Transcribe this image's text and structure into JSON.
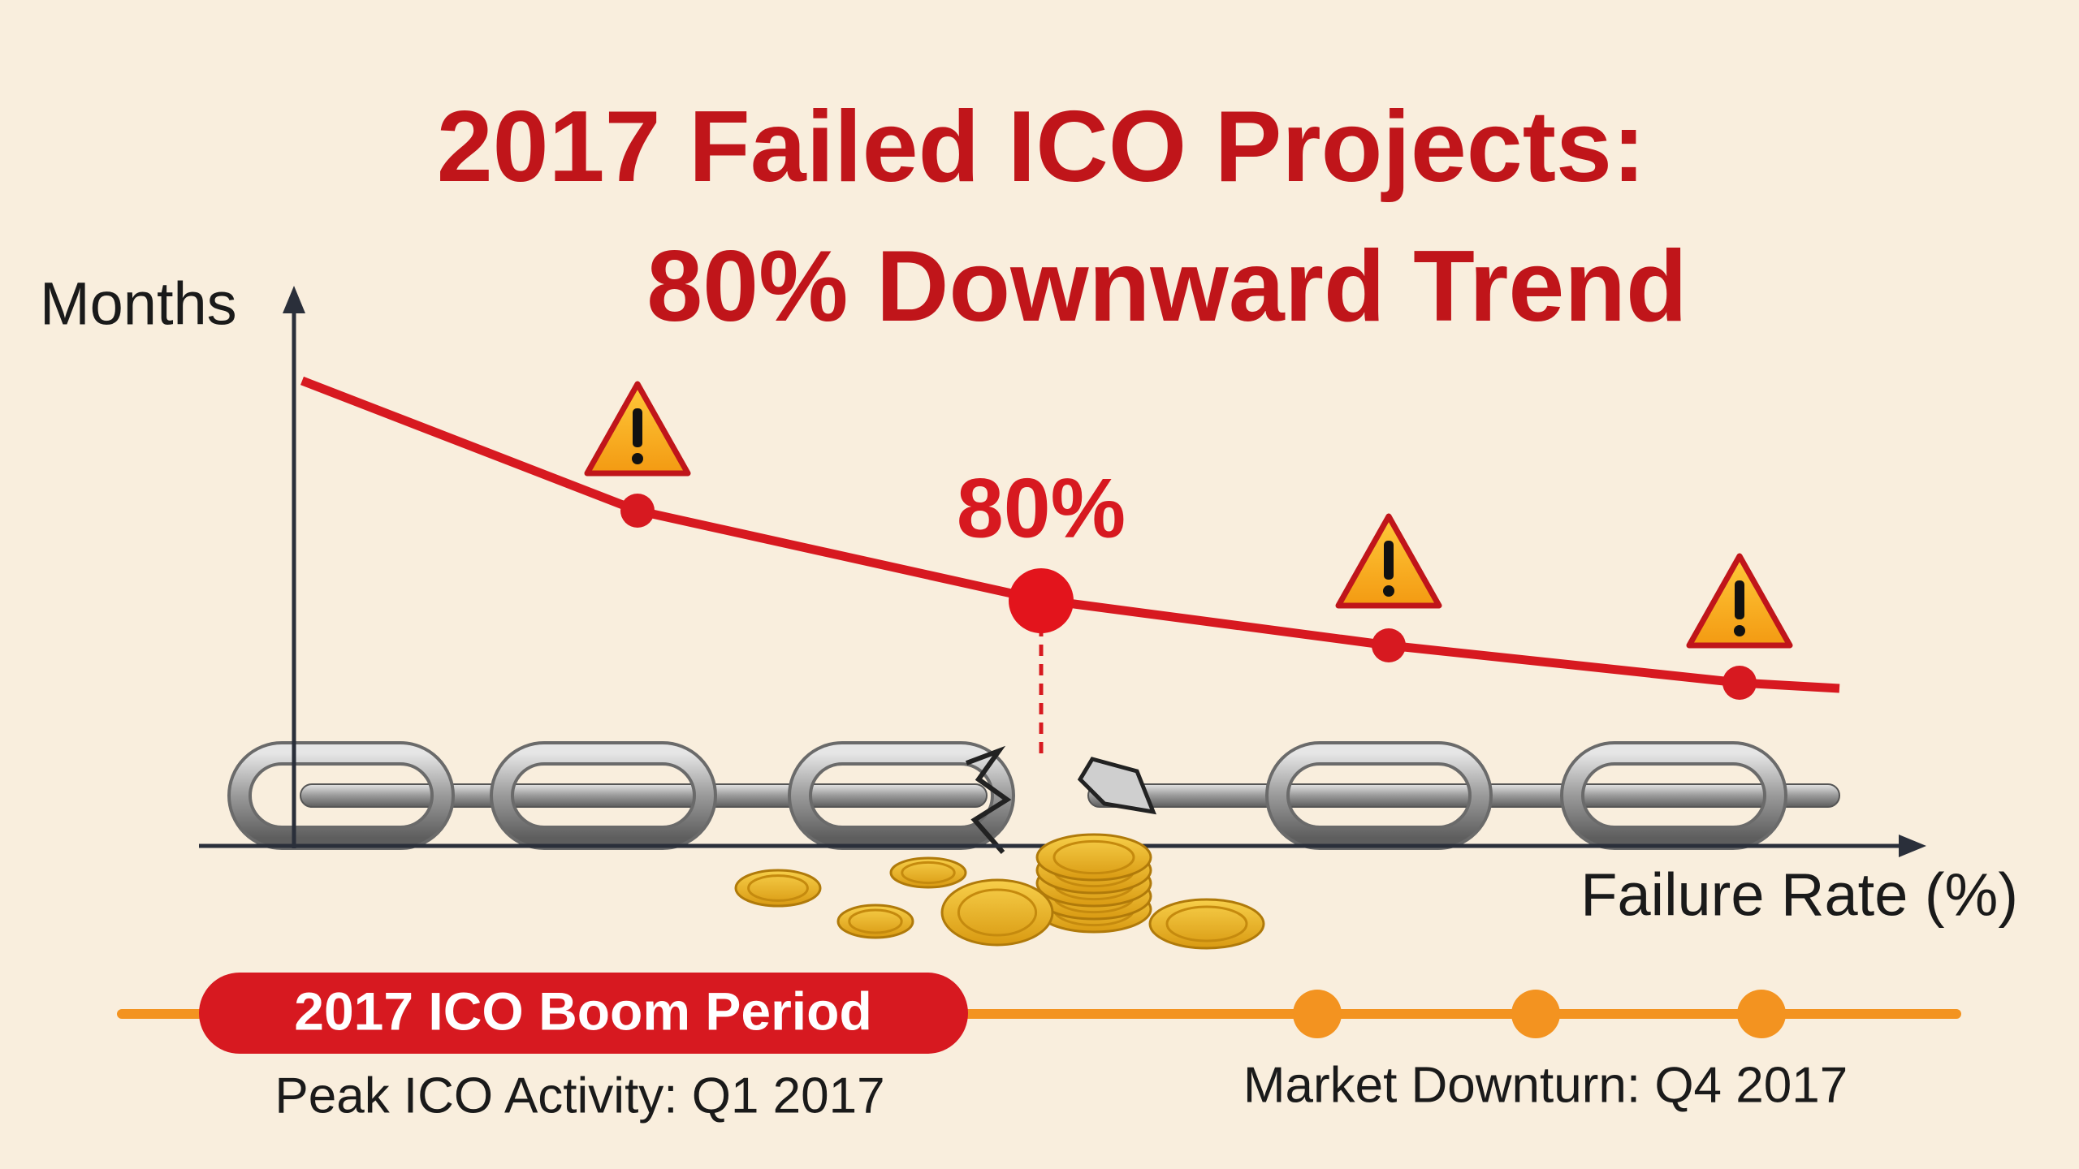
{
  "title": {
    "line1": "2017 Failed ICO Projects:",
    "line2": "80% Downward Trend"
  },
  "axes": {
    "y_label": "Months",
    "x_label": "Failure Rate (%)"
  },
  "callout": "80%",
  "timeline": {
    "period": "2017 ICO Boom Period",
    "start_note": "Peak ICO Activity: Q1 2017",
    "end_note": "Market Downturn: Q4 2017"
  }
}
